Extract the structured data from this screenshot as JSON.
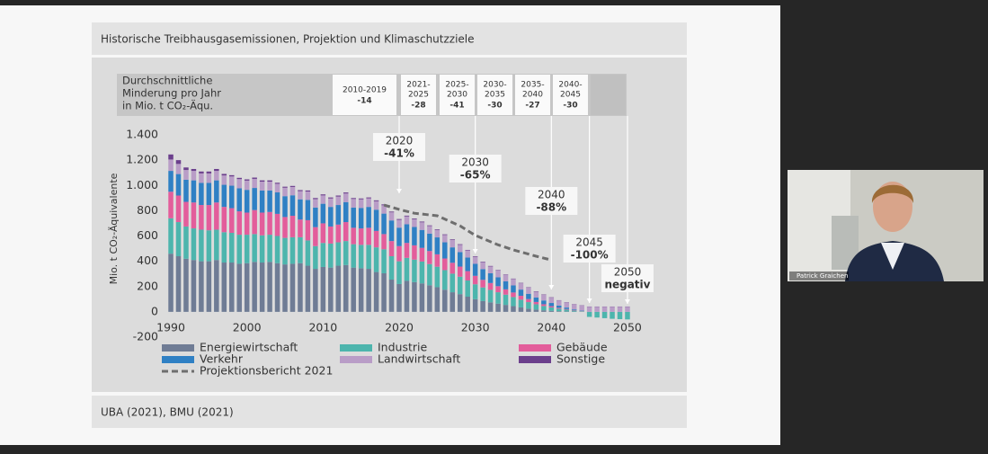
{
  "slide": {
    "title": "Historische Treibhausgasemissionen, Projektion und Klimaschutzziele",
    "source": "UBA (2021), BMU (2021)",
    "reduction_header": [
      "Durchschnittliche",
      "Minderung pro Jahr",
      "in Mio. t CO₂-Äqu."
    ],
    "periods": [
      {
        "lines": [
          "2010-2019"
        ],
        "value": -14
      },
      {
        "lines": [
          "2021-",
          "2025"
        ],
        "value": -28
      },
      {
        "lines": [
          "2025-",
          "2030"
        ],
        "value": -41
      },
      {
        "lines": [
          "2030-",
          "2035"
        ],
        "value": -30
      },
      {
        "lines": [
          "2035-",
          "2040"
        ],
        "value": -27
      },
      {
        "lines": [
          "2040-",
          "2045"
        ],
        "value": -30
      }
    ]
  },
  "chart_data": {
    "type": "bar",
    "stacked": true,
    "y_label": "Mio. t CO₂-Äquivalente",
    "x": [
      1990,
      1991,
      1992,
      1993,
      1994,
      1995,
      1996,
      1997,
      1998,
      1999,
      2000,
      2001,
      2002,
      2003,
      2004,
      2005,
      2006,
      2007,
      2008,
      2009,
      2010,
      2011,
      2012,
      2013,
      2014,
      2015,
      2016,
      2017,
      2018,
      2019,
      2020,
      2021,
      2022,
      2023,
      2024,
      2025,
      2026,
      2027,
      2028,
      2029,
      2030,
      2031,
      2032,
      2033,
      2034,
      2035,
      2036,
      2037,
      2038,
      2039,
      2040,
      2041,
      2042,
      2043,
      2044,
      2045,
      2046,
      2047,
      2048,
      2049,
      2050
    ],
    "xlim": [
      1989.5,
      2050.5
    ],
    "xticks": [
      1990,
      2000,
      2010,
      2020,
      2030,
      2040,
      2050
    ],
    "ylim": [
      -200,
      1400
    ],
    "yticks": [
      -200,
      0,
      200,
      400,
      600,
      800,
      {
        "value": 1000,
        "label": "1.000"
      },
      {
        "value": 1200,
        "label": "1.200"
      },
      {
        "value": 1400,
        "label": "1.400"
      }
    ],
    "series": [
      {
        "name": "Energiewirtschaft",
        "color": "#6f7c95",
        "values": [
          460,
          440,
          420,
          410,
          400,
          400,
          410,
          390,
          390,
          380,
          385,
          395,
          390,
          395,
          385,
          375,
          380,
          385,
          365,
          340,
          355,
          350,
          365,
          370,
          350,
          345,
          340,
          315,
          305,
          255,
          220,
          245,
          235,
          225,
          210,
          195,
          175,
          155,
          140,
          120,
          100,
          85,
          75,
          65,
          55,
          45,
          35,
          25,
          18,
          12,
          8,
          5,
          3,
          2,
          1,
          0,
          0,
          0,
          0,
          0,
          0
        ]
      },
      {
        "name": "Industrie",
        "color": "#4db5ad",
        "values": [
          280,
          270,
          255,
          250,
          250,
          245,
          240,
          240,
          235,
          230,
          225,
          220,
          215,
          215,
          215,
          210,
          210,
          205,
          200,
          180,
          190,
          190,
          185,
          190,
          185,
          185,
          190,
          195,
          190,
          185,
          180,
          182,
          178,
          173,
          168,
          162,
          155,
          147,
          138,
          128,
          118,
          108,
          99,
          90,
          81,
          72,
          62,
          52,
          42,
          34,
          27,
          20,
          14,
          8,
          4,
          -40,
          -45,
          -50,
          -55,
          -58,
          -60
        ]
      },
      {
        "name": "Gebäude",
        "color": "#e35d9b",
        "values": [
          210,
          210,
          195,
          205,
          195,
          200,
          215,
          200,
          195,
          185,
          175,
          190,
          180,
          180,
          175,
          165,
          170,
          140,
          160,
          150,
          155,
          135,
          140,
          150,
          130,
          130,
          135,
          130,
          120,
          120,
          120,
          118,
          113,
          108,
          103,
          98,
          92,
          86,
          80,
          74,
          67,
          60,
          54,
          48,
          42,
          36,
          30,
          24,
          18,
          14,
          10,
          7,
          5,
          3,
          2,
          0,
          0,
          0,
          0,
          0,
          0
        ]
      },
      {
        "name": "Verkehr",
        "color": "#2f80c4",
        "values": [
          165,
          170,
          175,
          175,
          175,
          175,
          175,
          175,
          178,
          182,
          180,
          175,
          175,
          170,
          170,
          165,
          162,
          160,
          160,
          155,
          155,
          155,
          155,
          158,
          160,
          162,
          165,
          168,
          162,
          163,
          146,
          148,
          145,
          142,
          138,
          134,
          128,
          122,
          115,
          108,
          95,
          85,
          77,
          70,
          63,
          56,
          49,
          42,
          35,
          30,
          25,
          18,
          12,
          6,
          3,
          0,
          0,
          0,
          0,
          0,
          0
        ]
      },
      {
        "name": "Landwirtschaft",
        "color": "#b99dc7",
        "values": [
          90,
          80,
          77,
          75,
          75,
          75,
          75,
          74,
          73,
          73,
          73,
          72,
          70,
          70,
          68,
          67,
          66,
          65,
          67,
          67,
          66,
          67,
          67,
          68,
          68,
          68,
          68,
          67,
          66,
          64,
          62,
          62,
          61,
          60,
          60,
          59,
          58,
          58,
          57,
          56,
          56,
          55,
          54,
          53,
          52,
          51,
          50,
          48,
          46,
          44,
          42,
          40,
          40,
          40,
          40,
          40,
          40,
          40,
          40,
          40,
          40
        ]
      },
      {
        "name": "Sonstige",
        "color": "#6b3f8c",
        "values": [
          40,
          30,
          20,
          15,
          15,
          15,
          15,
          12,
          10,
          10,
          10,
          10,
          10,
          10,
          8,
          8,
          8,
          8,
          8,
          8,
          8,
          8,
          8,
          8,
          7,
          7,
          7,
          7,
          7,
          6,
          6,
          6,
          6,
          6,
          5,
          5,
          5,
          5,
          5,
          4,
          4,
          4,
          4,
          4,
          3,
          3,
          3,
          3,
          3,
          3,
          3,
          2,
          2,
          2,
          2,
          2,
          2,
          2,
          2,
          2,
          2
        ]
      },
      {
        "name": "Projektionsbericht 2021",
        "type": "line",
        "dashed": true,
        "color": "#6e6e6e",
        "x": [
          2018,
          2020,
          2022,
          2025,
          2028,
          2030,
          2033,
          2035,
          2038,
          2040
        ],
        "values": [
          845,
          810,
          780,
          760,
          680,
          605,
          530,
          490,
          440,
          410
        ]
      }
    ],
    "annotations": [
      {
        "year": "2020",
        "text": "-41%"
      },
      {
        "year": "2030",
        "text": "-65%"
      },
      {
        "year": "2040",
        "text": "-88%"
      },
      {
        "year": "2045",
        "text": "-100%"
      },
      {
        "year": "2050",
        "text": "negativ"
      }
    ]
  },
  "participant": {
    "name": "Patrick Graichen"
  }
}
